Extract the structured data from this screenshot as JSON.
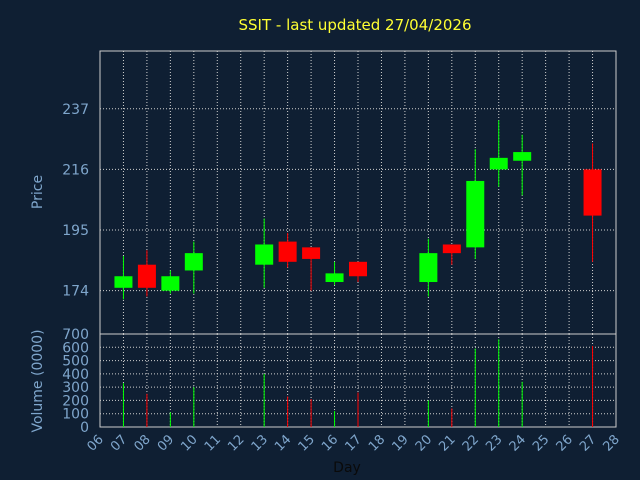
{
  "chart_data": {
    "type": "candlestick",
    "title": "SSIT - last updated 27/04/2026",
    "xlabel": "Day",
    "price_panel": {
      "ylabel": "Price",
      "yticks": [
        "174",
        "195",
        "216",
        "237"
      ],
      "ylim": [
        159,
        257
      ]
    },
    "volume_panel": {
      "ylabel": "Volume (0000)",
      "yticks": [
        "0",
        "100",
        "200",
        "300",
        "400",
        "500",
        "600",
        "700"
      ],
      "ylim": [
        0,
        700
      ]
    },
    "x_ticks": [
      "06",
      "07",
      "08",
      "09",
      "10",
      "11",
      "12",
      "13",
      "14",
      "15",
      "16",
      "17",
      "18",
      "19",
      "20",
      "21",
      "22",
      "23",
      "24",
      "25",
      "26",
      "27",
      "28"
    ],
    "x_range": [
      6,
      28
    ],
    "colors": {
      "up": "#00ff00",
      "down": "#ff0000",
      "title": "#ffff33",
      "axis_text": "#7fa6cc"
    },
    "candles": [
      {
        "day": 7,
        "open": 175,
        "high": 186,
        "low": 171,
        "close": 179,
        "volume": 330
      },
      {
        "day": 8,
        "open": 183,
        "high": 188,
        "low": 172,
        "close": 175,
        "volume": 250
      },
      {
        "day": 9,
        "open": 174,
        "high": 181,
        "low": 173,
        "close": 179,
        "volume": 110
      },
      {
        "day": 10,
        "open": 181,
        "high": 191,
        "low": 173,
        "close": 187,
        "volume": 300
      },
      {
        "day": 13,
        "open": 183,
        "high": 199,
        "low": 175,
        "close": 190,
        "volume": 400
      },
      {
        "day": 14,
        "open": 191,
        "high": 194,
        "low": 182,
        "close": 184,
        "volume": 230
      },
      {
        "day": 15,
        "open": 189,
        "high": 189,
        "low": 174,
        "close": 185,
        "volume": 210
      },
      {
        "day": 16,
        "open": 177,
        "high": 184,
        "low": 176,
        "close": 180,
        "volume": 120
      },
      {
        "day": 17,
        "open": 184,
        "high": 184,
        "low": 177,
        "close": 179,
        "volume": 260
      },
      {
        "day": 20,
        "open": 177,
        "high": 192,
        "low": 172,
        "close": 187,
        "volume": 200
      },
      {
        "day": 21,
        "open": 190,
        "high": 190,
        "low": 183,
        "close": 187,
        "volume": 140
      },
      {
        "day": 22,
        "open": 189,
        "high": 223,
        "low": 185,
        "close": 212,
        "volume": 590
      },
      {
        "day": 23,
        "open": 216,
        "high": 233,
        "low": 210,
        "close": 220,
        "volume": 660
      },
      {
        "day": 24,
        "open": 219,
        "high": 228,
        "low": 207,
        "close": 222,
        "volume": 340
      },
      {
        "day": 27,
        "open": 216,
        "high": 225,
        "low": 184,
        "close": 200,
        "volume": 610
      }
    ]
  }
}
